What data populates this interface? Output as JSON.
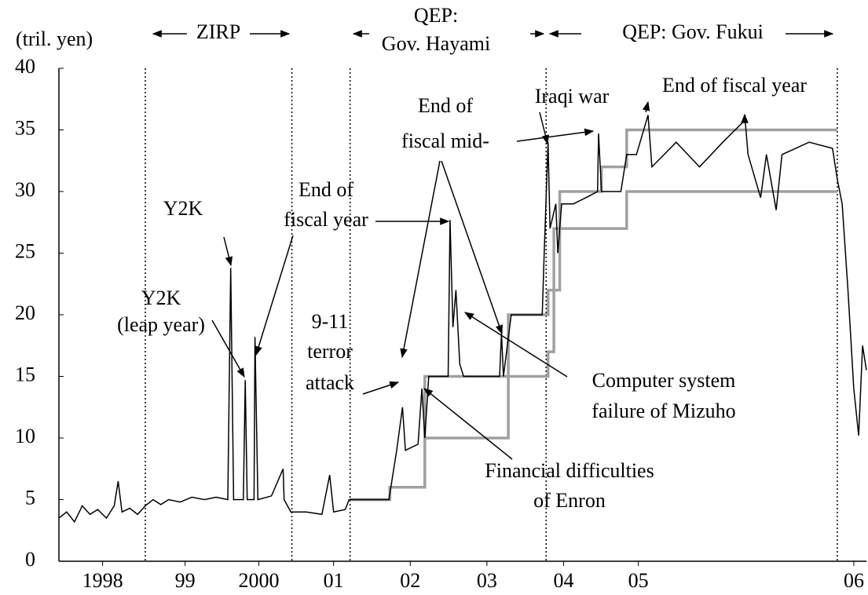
{
  "chart_data": {
    "type": "line",
    "ylabel": "(tril. yen)",
    "xlim": [
      1998.21,
      2006.53
    ],
    "ylim": [
      0,
      40
    ],
    "yticks": [
      0,
      5,
      10,
      15,
      20,
      25,
      30,
      35,
      40
    ],
    "xticks": [
      {
        "value": 1998.66,
        "label": "1998"
      },
      {
        "value": 1999.51,
        "label": "99"
      },
      {
        "value": 2000.27,
        "label": "2000"
      },
      {
        "value": 2001.04,
        "label": "01"
      },
      {
        "value": 2001.83,
        "label": "02"
      },
      {
        "value": 2002.62,
        "label": "03"
      },
      {
        "value": 2003.41,
        "label": "04"
      },
      {
        "value": 2004.18,
        "label": "05"
      },
      {
        "value": 2006.4,
        "label": "06"
      }
    ],
    "vlines": [
      1999.1,
      2000.61,
      2001.21,
      2003.23,
      2006.23
    ],
    "periods": [
      [
        "ZIRP"
      ],
      [
        "QEP:",
        "Gov. Hayami"
      ],
      [
        "QEP: Gov. Fukui"
      ]
    ],
    "series": [
      {
        "color": "#000000",
        "x": [
          1998.21,
          1998.29,
          1998.37,
          1998.45,
          1998.53,
          1998.61,
          1998.7,
          1998.78,
          1998.82,
          1998.86,
          1998.94,
          1999.02,
          1999.1,
          1999.18,
          1999.26,
          1999.34,
          1999.46,
          1999.58,
          1999.71,
          1999.83,
          1999.95,
          1999.98,
          2000.01,
          2000.11,
          2000.13,
          2000.15,
          2000.22,
          2000.23,
          2000.26,
          2000.4,
          2000.52,
          2000.53,
          2000.6,
          2000.76,
          2000.92,
          2001.0,
          2001.04,
          2001.16,
          2001.2,
          2001.61,
          2001.69,
          2001.75,
          2001.78,
          2001.91,
          2001.95,
          2001.98,
          2002.02,
          2002.22,
          2002.24,
          2002.27,
          2002.3,
          2002.34,
          2002.38,
          2002.75,
          2002.77,
          2002.79,
          2002.87,
          2003.19,
          2003.21,
          2003.25,
          2003.27,
          2003.33,
          2003.35,
          2003.39,
          2003.51,
          2003.64,
          2003.76,
          2003.77,
          2003.8,
          2004.0,
          2004.06,
          2004.16,
          2004.28,
          2004.32,
          2004.57,
          2004.81,
          2005.05,
          2005.28,
          2005.31,
          2005.44,
          2005.5,
          2005.6,
          2005.66,
          2005.94,
          2006.18,
          2006.23,
          2006.28,
          2006.34,
          2006.4,
          2006.45,
          2006.49,
          2006.53
        ],
        "values": [
          3.5,
          4,
          3.2,
          4.5,
          3.8,
          4.2,
          3.5,
          4.5,
          6.5,
          4,
          4.3,
          3.8,
          4.5,
          5,
          4.6,
          5,
          4.8,
          5.2,
          5,
          5.2,
          5,
          23.8,
          5,
          5,
          14.7,
          5,
          5,
          18.2,
          5,
          5.3,
          7.5,
          5,
          4,
          4,
          3.8,
          7,
          4,
          4.2,
          5,
          5,
          9,
          12.5,
          9,
          9.5,
          14,
          10,
          15,
          15,
          27.7,
          19,
          22,
          16,
          15,
          15,
          18.5,
          15,
          20,
          20,
          25,
          34,
          27,
          29,
          25,
          29,
          29,
          29.5,
          30,
          34.7,
          30,
          30,
          33,
          33,
          36.2,
          32,
          34,
          32,
          34,
          35.8,
          33,
          29.5,
          33,
          28.5,
          33,
          34,
          33.5,
          31,
          29,
          22,
          14,
          10.2,
          17.5,
          15.5
        ]
      },
      {
        "color": "#a0a0a0",
        "x": [
          2001.21,
          2001.62,
          2001.62,
          2001.98,
          2001.98,
          2002.84,
          2002.84,
          2003.25,
          2003.25,
          2003.31,
          2003.31,
          2003.37,
          2003.37,
          2004.06,
          2004.06,
          2006.23
        ],
        "values": [
          5,
          5,
          6,
          6,
          10,
          10,
          15,
          15,
          17,
          17,
          22,
          22,
          27,
          27,
          30,
          30
        ]
      },
      {
        "color": "#a0a0a0",
        "x": [
          2001.21,
          2001.62,
          2001.62,
          2001.98,
          2001.98,
          2002.84,
          2002.84,
          2003.25,
          2003.25,
          2003.31,
          2003.31,
          2003.37,
          2003.37,
          2003.8,
          2003.8,
          2004.06,
          2004.06,
          2006.23
        ],
        "values": [
          5,
          5,
          6,
          6,
          15,
          15,
          20,
          20,
          22,
          22,
          27,
          27,
          30,
          30,
          32,
          32,
          35,
          35
        ]
      }
    ],
    "annotations": [
      {
        "lines": [
          "Y2K"
        ]
      },
      {
        "lines": [
          "Y2K",
          "(leap year)"
        ]
      },
      {
        "lines": [
          "End of",
          "fiscal year"
        ]
      },
      {
        "lines": [
          "9-11",
          "terror",
          "attack"
        ]
      },
      {
        "lines": [
          "End of",
          "fiscal mid-"
        ]
      },
      {
        "lines": [
          "Iraqi war"
        ]
      },
      {
        "lines": [
          "End of fiscal year"
        ]
      },
      {
        "lines": [
          "Computer system",
          "failure of Mizuho"
        ]
      },
      {
        "lines": [
          "Financial difficulties",
          "of Enron"
        ]
      }
    ]
  }
}
